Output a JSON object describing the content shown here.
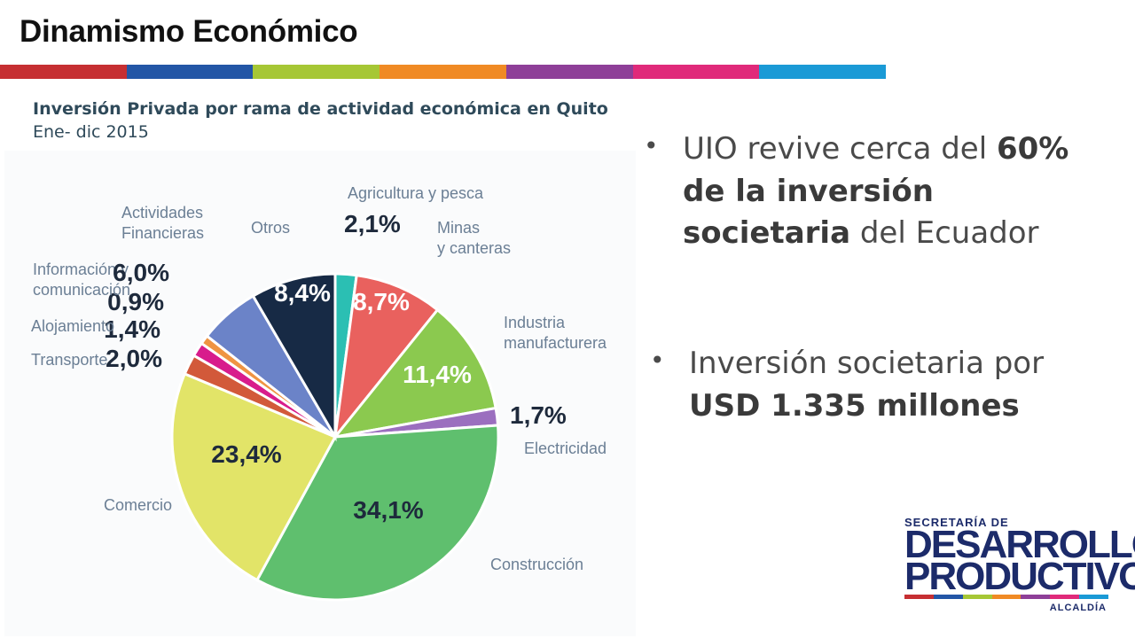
{
  "title": "Dinamismo Económico",
  "colorbar": [
    "#c62f32",
    "#2356a6",
    "#a6c735",
    "#f08a24",
    "#8e3f98",
    "#e02a7a",
    "#1a9ad6"
  ],
  "chart_heading": {
    "line1": "Inversión Privada por rama de actividad económica en Quito",
    "line2": "Ene- dic 2015"
  },
  "chart_data": {
    "type": "pie",
    "title": "Inversión Privada por rama de actividad económica en Quito",
    "subtitle": "Ene- dic 2015",
    "unit": "%",
    "slices": [
      {
        "label": "Agricultura y pesca",
        "value": 2.1,
        "display": "2,1%",
        "color": "#2bbfb3"
      },
      {
        "label": "Minas y canteras",
        "value": 8.7,
        "display": "8,7%",
        "color": "#e9615e"
      },
      {
        "label": "Industria manufacturera",
        "value": 11.4,
        "display": "11,4%",
        "color": "#8bc94f"
      },
      {
        "label": "Electricidad",
        "value": 1.7,
        "display": "1,7%",
        "color": "#9b6fbf"
      },
      {
        "label": "Construcción",
        "value": 34.1,
        "display": "34,1%",
        "color": "#5fbf6e"
      },
      {
        "label": "Comercio",
        "value": 23.4,
        "display": "23,4%",
        "color": "#e2e468"
      },
      {
        "label": "Transporte",
        "value": 2.0,
        "display": "2,0%",
        "color": "#d2593a"
      },
      {
        "label": "Alojamiento",
        "value": 1.4,
        "display": "1,4%",
        "color": "#d81c8c"
      },
      {
        "label": "Información y comunicación",
        "value": 0.9,
        "display": "0,9%",
        "color": "#ef9442"
      },
      {
        "label": "Actividades Financieras",
        "value": 6.0,
        "display": "6,0%",
        "color": "#6b83c8"
      },
      {
        "label": "Otros",
        "value": 8.4,
        "display": "8,4%",
        "color": "#172a45"
      }
    ]
  },
  "bullets": {
    "b1_pre": "UIO revive cerca del ",
    "b1_bold": "60% de la inversión societaria",
    "b1_post": " del Ecuador",
    "b2_pre": "Inversión societaria por ",
    "b2_bold": "USD 1.335 millones"
  },
  "logo": {
    "line1": "SECRETARÍA DE",
    "line2": "DESARROLLO",
    "line3": "PRODUCTIVO",
    "line4": "ALCALDÍA"
  }
}
